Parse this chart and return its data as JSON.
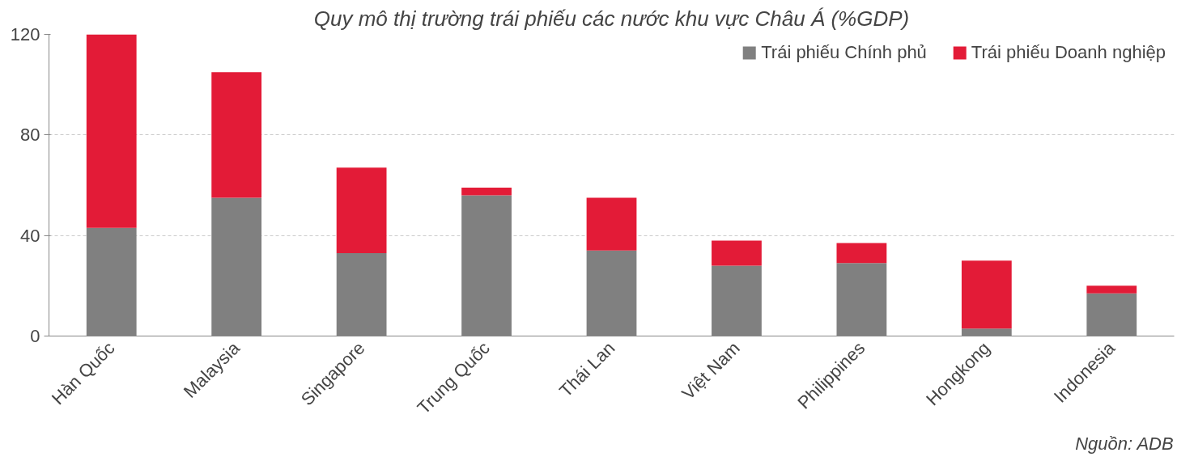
{
  "chart_data": {
    "type": "bar",
    "title": "Quy mô thị trường trái phiếu các nước khu vực Châu Á (%GDP)",
    "categories": [
      "Hàn Quốc",
      "Malaysia",
      "Singapore",
      "Trung Quốc",
      "Thái Lan",
      "Việt Nam",
      "Philippines",
      "Hongkong",
      "Indonesia"
    ],
    "stacked": true,
    "series": [
      {
        "name": "Trái phiếu Chính phủ",
        "color": "#808080",
        "values": [
          43,
          55,
          33,
          56,
          34,
          28,
          29,
          3,
          17
        ]
      },
      {
        "name": "Trái phiếu Doanh nghiệp",
        "color": "#e31b37",
        "values": [
          77,
          50,
          34,
          3,
          21,
          10,
          8,
          27,
          3
        ]
      }
    ],
    "ylim": [
      0,
      120
    ],
    "yticks": [
      0,
      40,
      80,
      120
    ],
    "grid": "y",
    "legend": "top right",
    "annotations": [
      "Nguồn: ADB"
    ]
  }
}
